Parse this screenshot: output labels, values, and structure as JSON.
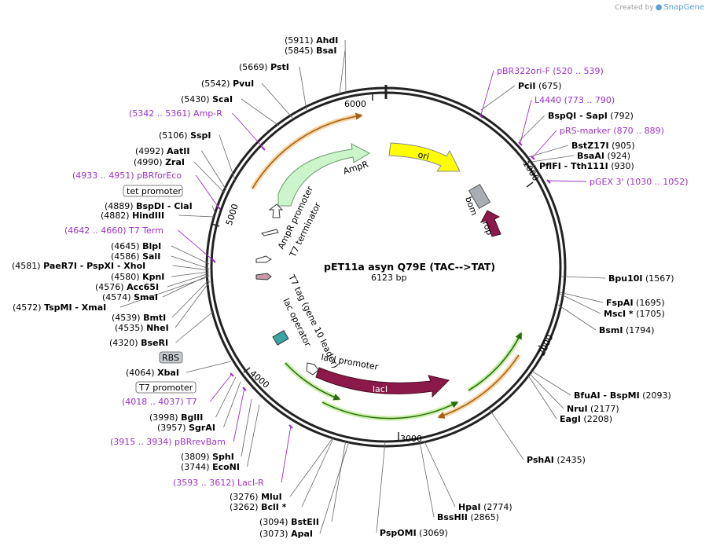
{
  "credit": {
    "prefix": "Created by",
    "brand": "SnapGene"
  },
  "plasmid": {
    "name": "pET11a asyn Q79E (TAC-->TAT)",
    "size_label": "6123 bp",
    "length": 6123
  },
  "ticks": [
    "6000",
    "1000",
    "2000",
    "3000",
    "4000",
    "5000"
  ],
  "enzymes": [
    {
      "pos": "(5911)",
      "name": "AhdI"
    },
    {
      "pos": "(5845)",
      "name": "BsaI"
    },
    {
      "pos": "(5669)",
      "name": "PstI"
    },
    {
      "pos": "(5542)",
      "name": "PvuI"
    },
    {
      "pos": "(5430)",
      "name": "ScaI"
    },
    {
      "pos": "(5106)",
      "name": "SspI"
    },
    {
      "pos": "(4992)",
      "name": "AatII"
    },
    {
      "pos": "(4990)",
      "name": "ZraI"
    },
    {
      "pos": "(4889)",
      "name": "BspDI - ClaI"
    },
    {
      "pos": "(4882)",
      "name": "HindIII"
    },
    {
      "pos": "(4645)",
      "name": "BlpI"
    },
    {
      "pos": "(4586)",
      "name": "SalI"
    },
    {
      "pos": "(4581)",
      "name": "PaeR7I - PspXI - XhoI"
    },
    {
      "pos": "(4580)",
      "name": "KpnI"
    },
    {
      "pos": "(4576)",
      "name": "Acc65I"
    },
    {
      "pos": "(4574)",
      "name": "SmaI"
    },
    {
      "pos": "(4572)",
      "name": "TspMI - XmaI"
    },
    {
      "pos": "(4539)",
      "name": "BmtI"
    },
    {
      "pos": "(4535)",
      "name": "NheI"
    },
    {
      "pos": "(4320)",
      "name": "BseRI"
    },
    {
      "pos": "(4064)",
      "name": "XbaI"
    },
    {
      "pos": "(3998)",
      "name": "BglII"
    },
    {
      "pos": "(3957)",
      "name": "SgrAI"
    },
    {
      "pos": "(3809)",
      "name": "SphI"
    },
    {
      "pos": "(3744)",
      "name": "EcoNI"
    },
    {
      "pos": "(3276)",
      "name": "MluI"
    },
    {
      "pos": "(3262)",
      "name": "BclI *"
    },
    {
      "pos": "(3094)",
      "name": "BstEII"
    },
    {
      "pos": "(3073)",
      "name": "ApaI"
    },
    {
      "pos": "(3069)",
      "name": "PspOMI"
    },
    {
      "pos": "(2865)",
      "name": "BssHII"
    },
    {
      "pos": "(2774)",
      "name": "HpaI"
    },
    {
      "pos": "(2435)",
      "name": "PshAI"
    },
    {
      "pos": "(2208)",
      "name": "EagI"
    },
    {
      "pos": "(2177)",
      "name": "NruI"
    },
    {
      "pos": "(2093)",
      "name": "BfuAI - BspMI"
    },
    {
      "pos": "(1794)",
      "name": "BsmI"
    },
    {
      "pos": "(1705)",
      "name": "MscI *"
    },
    {
      "pos": "(1695)",
      "name": "FspAI"
    },
    {
      "pos": "(1567)",
      "name": "Bpu10I"
    },
    {
      "pos": "(930)",
      "name": "PflFI - Tth111I"
    },
    {
      "pos": "(924)",
      "name": "BsaAI"
    },
    {
      "pos": "(905)",
      "name": "BstZ17I"
    },
    {
      "pos": "(792)",
      "name": "BspQI - SapI"
    },
    {
      "pos": "(675)",
      "name": "PciI"
    }
  ],
  "primers": [
    {
      "name": "pBR322ori-F",
      "range": "(520 .. 539)"
    },
    {
      "name": "L4440",
      "range": "(773 .. 790)"
    },
    {
      "name": "pRS-marker",
      "range": "(870 .. 889)"
    },
    {
      "name": "pGEX 3'",
      "range": "(1030 .. 1052)"
    },
    {
      "name": "Amp-R",
      "range": "(5342 .. 5361)"
    },
    {
      "name": "pBRforEco",
      "range": "(4933 .. 4951)"
    },
    {
      "name": "T7 Term",
      "range": "(4642 .. 4660)"
    },
    {
      "name": "T7",
      "range": "(4018 .. 4037)"
    },
    {
      "name": "pBRrevBam",
      "range": "(3915 .. 3934)"
    },
    {
      "name": "LacI-R",
      "range": "(3593 .. 3612)"
    }
  ],
  "boxed_features": [
    "tet promoter",
    "RBS",
    "T7 promoter"
  ],
  "features": [
    "AmpR",
    "ori",
    "bom",
    "rop",
    "AmpR promoter",
    "T7 terminator",
    "T7 tag (gene 10 leader)",
    "lac operator",
    "lacI promoter",
    "lacI"
  ],
  "colors": {
    "ampr": "#ccf5cc",
    "ori": "#ffff00",
    "laci": "#8b1a4a",
    "rop": "#8b1a4a",
    "bom": "#a8aeb4",
    "primer": "#9b30c8",
    "orf_green": "#5aaa22",
    "orf_orange": "#e8a040"
  }
}
